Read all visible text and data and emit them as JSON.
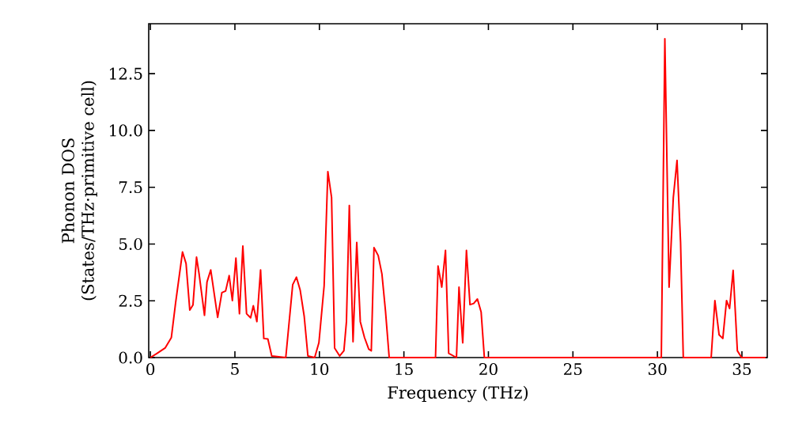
{
  "chart_data": {
    "type": "line",
    "xlabel": "Frequency (THz)",
    "ylabel": "Phonon DOS\n(States/THz·primitive cell)",
    "x": [
      0,
      0.4,
      0.87,
      1.24,
      1.49,
      1.9,
      2.11,
      2.33,
      2.52,
      2.73,
      2.89,
      3.2,
      3.35,
      3.57,
      3.98,
      4.23,
      4.45,
      4.66,
      4.85,
      5.06,
      5.27,
      5.47,
      5.69,
      5.93,
      6.09,
      6.3,
      6.52,
      6.71,
      6.95,
      7.18,
      8.01,
      8.42,
      8.64,
      8.86,
      9.1,
      9.32,
      9.72,
      9.97,
      10.28,
      10.5,
      10.72,
      10.9,
      11.2,
      11.45,
      11.6,
      11.77,
      11.99,
      12.21,
      12.42,
      12.67,
      12.92,
      13.07,
      13.23,
      13.48,
      13.7,
      13.91,
      14.13,
      16.87,
      17.02,
      17.24,
      17.46,
      17.65,
      18.11,
      18.26,
      18.48,
      18.7,
      18.91,
      19.13,
      19.35,
      19.57,
      19.76,
      30.23,
      30.44,
      30.69,
      30.94,
      31.16,
      31.37,
      31.53,
      33.18,
      33.4,
      33.65,
      33.87,
      34.09,
      34.27,
      34.48,
      34.73,
      34.98,
      36.4
    ],
    "values": [
      0,
      0.19,
      0.42,
      0.88,
      2.4,
      4.65,
      4.14,
      2.09,
      2.32,
      4.42,
      3.64,
      1.86,
      3.33,
      3.86,
      1.77,
      2.86,
      2.93,
      3.61,
      2.51,
      4.38,
      1.93,
      4.91,
      1.93,
      1.75,
      2.28,
      1.58,
      3.86,
      0.84,
      0.82,
      0.07,
      0,
      3.21,
      3.54,
      2.98,
      1.82,
      0.07,
      0,
      0.65,
      3.16,
      8.19,
      7.05,
      0.42,
      0.07,
      0.3,
      1.58,
      6.7,
      0.7,
      5.07,
      1.58,
      0.88,
      0.37,
      0.3,
      4.84,
      4.49,
      3.68,
      2.05,
      0,
      0,
      4.03,
      3.1,
      4.72,
      0.19,
      0,
      3.1,
      0.65,
      4.72,
      2.33,
      2.38,
      2.58,
      2.0,
      0,
      0,
      14.04,
      3.1,
      7.05,
      8.68,
      5.07,
      0,
      0,
      2.51,
      1.0,
      0.84,
      2.51,
      2.16,
      3.84,
      0.3,
      0,
      0
    ],
    "color": "#ff0000",
    "xlim": [
      -0.1,
      36.5
    ],
    "ylim": [
      0,
      14.7
    ],
    "xticks": [
      0,
      5,
      10,
      15,
      20,
      25,
      30,
      35
    ],
    "yticks": [
      {
        "value": 0,
        "label": "0.0"
      },
      {
        "value": 2.5,
        "label": "2.5"
      },
      {
        "value": 5,
        "label": "5.0"
      },
      {
        "value": 7.5,
        "label": "7.5"
      },
      {
        "value": 10,
        "label": "10.0"
      },
      {
        "value": 12.5,
        "label": "12.5"
      }
    ],
    "grid": false,
    "marker": "none",
    "line_style": "solid"
  }
}
